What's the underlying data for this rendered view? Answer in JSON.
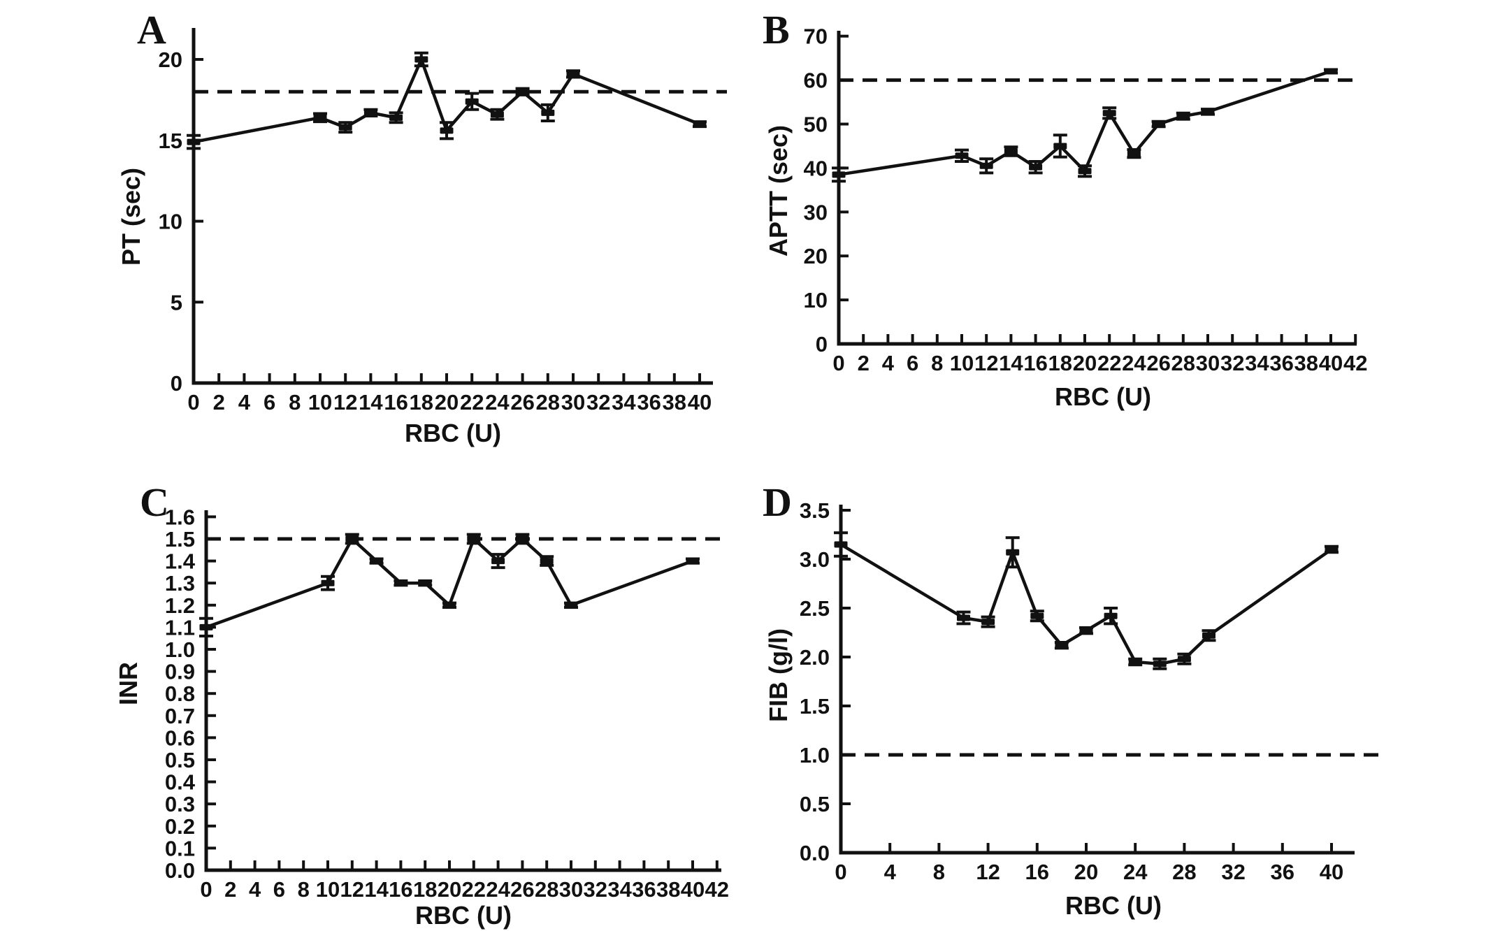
{
  "figure": {
    "background": "#ffffff",
    "ink_color": "#111111",
    "description": "Four-panel line figure of coagulation parameters versus RBC units transfused"
  },
  "chart_data": [
    {
      "id": "A",
      "type": "line",
      "panel_label": "A",
      "xlabel": "RBC (U)",
      "ylabel": "PT (sec)",
      "xlim": [
        0,
        41
      ],
      "ylim": [
        0,
        21.9
      ],
      "xticks": [
        0,
        2,
        4,
        6,
        8,
        10,
        12,
        14,
        16,
        18,
        20,
        22,
        24,
        26,
        28,
        30,
        32,
        34,
        36,
        38,
        40
      ],
      "yticks": [
        0,
        5,
        10,
        15,
        20
      ],
      "ytick_decimals": 0,
      "grid": false,
      "legend": false,
      "reference_line_y": 18,
      "series": [
        {
          "name": "PT",
          "x": [
            0,
            10,
            12,
            14,
            16,
            18,
            20,
            22,
            24,
            26,
            28,
            30,
            40
          ],
          "y": [
            14.9,
            16.4,
            15.8,
            16.7,
            16.4,
            20.0,
            15.6,
            17.4,
            16.6,
            18.0,
            16.7,
            19.1,
            16.0
          ],
          "yerr": [
            0.4,
            0.25,
            0.3,
            0.2,
            0.3,
            0.4,
            0.5,
            0.5,
            0.3,
            0.2,
            0.5,
            0.2,
            0.15
          ]
        }
      ]
    },
    {
      "id": "B",
      "type": "line",
      "panel_label": "B",
      "xlabel": "RBC (U)",
      "ylabel": "APTT (sec)",
      "xlim": [
        0,
        42
      ],
      "ylim": [
        0,
        71.5
      ],
      "xticks": [
        0,
        2,
        4,
        6,
        8,
        10,
        12,
        14,
        16,
        18,
        20,
        22,
        24,
        26,
        28,
        30,
        32,
        34,
        36,
        38,
        40,
        42
      ],
      "yticks": [
        0,
        10,
        20,
        30,
        40,
        50,
        60,
        70
      ],
      "ytick_decimals": 0,
      "grid": false,
      "legend": false,
      "reference_line_y": 60,
      "series": [
        {
          "name": "APTT",
          "x": [
            0,
            10,
            12,
            14,
            16,
            18,
            20,
            22,
            24,
            26,
            28,
            30,
            40
          ],
          "y": [
            38.5,
            42.8,
            40.5,
            43.8,
            40.2,
            45.0,
            39.3,
            52.5,
            43.3,
            50.0,
            51.8,
            52.8,
            62.0
          ],
          "yerr": [
            1.5,
            1.3,
            1.6,
            1.0,
            1.3,
            2.5,
            1.2,
            1.2,
            0.9,
            0.6,
            0.7,
            0.6,
            0.4
          ]
        }
      ]
    },
    {
      "id": "C",
      "type": "line",
      "panel_label": "C",
      "xlabel": "RBC (U)",
      "ylabel": "INR",
      "xlim": [
        0,
        42
      ],
      "ylim": [
        0,
        1.63
      ],
      "xticks": [
        0,
        2,
        4,
        6,
        8,
        10,
        12,
        14,
        16,
        18,
        20,
        22,
        24,
        26,
        28,
        30,
        32,
        34,
        36,
        38,
        40,
        42
      ],
      "yticks": [
        0.0,
        0.1,
        0.2,
        0.3,
        0.4,
        0.5,
        0.6,
        0.7,
        0.8,
        0.9,
        1.0,
        1.1,
        1.2,
        1.3,
        1.4,
        1.5,
        1.6
      ],
      "ytick_decimals": 1,
      "grid": false,
      "legend": false,
      "reference_line_y": 1.5,
      "series": [
        {
          "name": "INR",
          "x": [
            0,
            10,
            12,
            14,
            16,
            18,
            20,
            22,
            24,
            26,
            28,
            30,
            40
          ],
          "y": [
            1.1,
            1.3,
            1.5,
            1.4,
            1.3,
            1.3,
            1.2,
            1.5,
            1.4,
            1.5,
            1.4,
            1.2,
            1.4
          ],
          "yerr": [
            0.04,
            0.03,
            0.02,
            0.01,
            0.01,
            0.01,
            0.01,
            0.02,
            0.03,
            0.02,
            0.02,
            0.01,
            0.01
          ]
        }
      ]
    },
    {
      "id": "D",
      "type": "line",
      "panel_label": "D",
      "xlabel": "RBC (U)",
      "ylabel": "FIB (g/l)",
      "xlim": [
        0,
        42
      ],
      "ylim": [
        0,
        3.56
      ],
      "xticks": [
        0,
        4,
        8,
        12,
        16,
        20,
        24,
        28,
        32,
        36,
        40
      ],
      "yticks": [
        0.0,
        0.5,
        1.0,
        1.5,
        2.0,
        2.5,
        3.0,
        3.5
      ],
      "ytick_decimals": 1,
      "grid": false,
      "legend": false,
      "reference_line_y": 1.0,
      "series": [
        {
          "name": "FIB",
          "x": [
            0,
            10,
            12,
            14,
            16,
            18,
            20,
            22,
            24,
            26,
            28,
            30,
            40
          ],
          "y": [
            3.15,
            2.4,
            2.36,
            3.07,
            2.42,
            2.12,
            2.27,
            2.42,
            1.95,
            1.93,
            1.98,
            2.22,
            3.1
          ],
          "yerr": [
            0.12,
            0.06,
            0.05,
            0.15,
            0.05,
            0.03,
            0.03,
            0.08,
            0.03,
            0.05,
            0.05,
            0.05,
            0.03
          ]
        }
      ]
    }
  ]
}
